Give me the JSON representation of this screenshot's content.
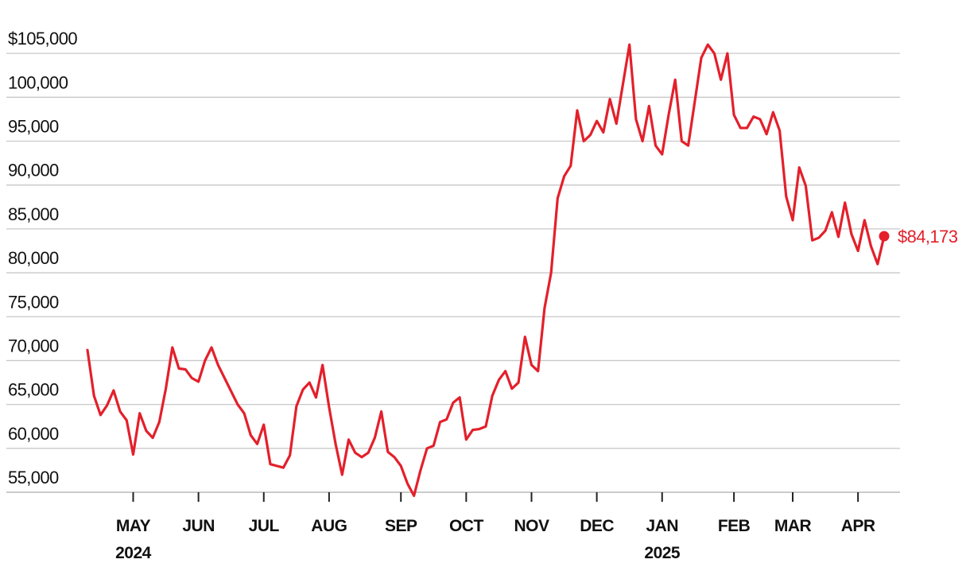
{
  "chart_data": {
    "type": "line",
    "color": "#e3202b",
    "categories": [
      null,
      null,
      null,
      null,
      null,
      null,
      null,
      "MAY\n2024",
      null,
      null,
      null,
      null,
      null,
      null,
      null,
      null,
      null,
      "JUN",
      null,
      null,
      null,
      null,
      null,
      null,
      null,
      null,
      null,
      "JUL",
      null,
      null,
      null,
      null,
      null,
      null,
      null,
      null,
      null,
      "AUG",
      null,
      null,
      null,
      null,
      null,
      null,
      null,
      null,
      null,
      null,
      "SEP",
      null,
      null,
      null,
      null,
      null,
      null,
      null,
      null,
      null,
      "OCT",
      null,
      null,
      null,
      null,
      null,
      null,
      null,
      null,
      null,
      "NOV",
      null,
      null,
      null,
      null,
      null,
      null,
      null,
      null,
      null,
      "DEC",
      null,
      null,
      null,
      null,
      null,
      null,
      null,
      null,
      null,
      "JAN\n2025",
      null,
      null,
      null,
      null,
      null,
      null,
      null,
      null,
      null,
      null,
      "FEB",
      null,
      null,
      null,
      null,
      null,
      null,
      null,
      null,
      "MAR",
      null,
      null,
      null,
      null,
      null,
      null,
      null,
      null,
      null,
      "APR",
      null,
      null,
      null,
      null
    ],
    "values": [
      71200,
      66000,
      63800,
      64900,
      66600,
      64200,
      63200,
      59300,
      64000,
      62000,
      61200,
      63000,
      66800,
      71500,
      69100,
      69000,
      68000,
      67600,
      70000,
      71500,
      69500,
      68000,
      66500,
      65000,
      64000,
      61500,
      60500,
      62700,
      58200,
      58000,
      57800,
      59200,
      64800,
      66700,
      67500,
      65800,
      69500,
      64700,
      60500,
      57000,
      61000,
      59500,
      59000,
      59500,
      61200,
      64200,
      59600,
      59000,
      58000,
      56000,
      54600,
      57500,
      60000,
      60300,
      63000,
      63300,
      65200,
      65800,
      61000,
      62100,
      62200,
      62500,
      66000,
      67800,
      68800,
      66800,
      67500,
      72700,
      69500,
      68800,
      76000,
      80000,
      88500,
      91000,
      92200,
      98500,
      95000,
      95700,
      97300,
      96000,
      99800,
      97000,
      101500,
      106000,
      97500,
      95000,
      99000,
      94500,
      93500,
      98000,
      102000,
      95000,
      94500,
      99500,
      104500,
      106000,
      105000,
      102000,
      105000,
      98000,
      96500,
      96500,
      97800,
      97500,
      95800,
      98300,
      96200,
      88700,
      86000,
      92000,
      89900,
      83700,
      84000,
      84800,
      86900,
      84100,
      88000,
      84400,
      82500,
      86000,
      83000,
      81000,
      84173
    ],
    "value_labels": [
      null,
      null,
      null,
      null,
      null,
      null,
      null,
      null,
      null,
      null,
      null,
      null,
      null,
      null,
      null,
      null,
      null,
      null,
      null,
      null,
      null,
      null,
      null,
      null,
      null,
      null,
      null,
      null,
      null,
      null,
      null,
      null,
      null,
      null,
      null,
      null,
      null,
      null,
      null,
      null,
      null,
      null,
      null,
      null,
      null,
      null,
      null,
      null,
      null,
      null,
      null,
      null,
      null,
      null,
      null,
      null,
      null,
      null,
      null,
      null,
      null,
      null,
      null,
      null,
      null,
      null,
      null,
      null,
      null,
      null,
      null,
      null,
      null,
      null,
      null,
      null,
      null,
      null,
      null,
      null,
      null,
      null,
      null,
      null,
      null,
      null,
      null,
      null,
      null,
      null,
      null,
      null,
      null,
      null,
      null,
      null,
      null,
      null,
      null,
      null,
      null,
      null,
      null,
      null,
      null,
      null,
      null,
      null,
      null,
      null,
      null,
      null,
      null,
      null,
      null,
      null,
      null,
      null,
      null,
      null,
      null,
      null,
      "$84,173"
    ],
    "ylim": [
      55000,
      109000
    ],
    "yticks": [
      {
        "value": 55000,
        "label": "55,000"
      },
      {
        "value": 60000,
        "label": "60,000"
      },
      {
        "value": 65000,
        "label": "65,000"
      },
      {
        "value": 70000,
        "label": "70,000"
      },
      {
        "value": 75000,
        "label": "75,000"
      },
      {
        "value": 80000,
        "label": "80,000"
      },
      {
        "value": 85000,
        "label": "85,000"
      },
      {
        "value": 90000,
        "label": "90,000"
      },
      {
        "value": 95000,
        "label": "95,000"
      },
      {
        "value": 100000,
        "label": "100,000"
      },
      {
        "value": 105000,
        "label": "$105,000"
      }
    ],
    "grid": true
  }
}
